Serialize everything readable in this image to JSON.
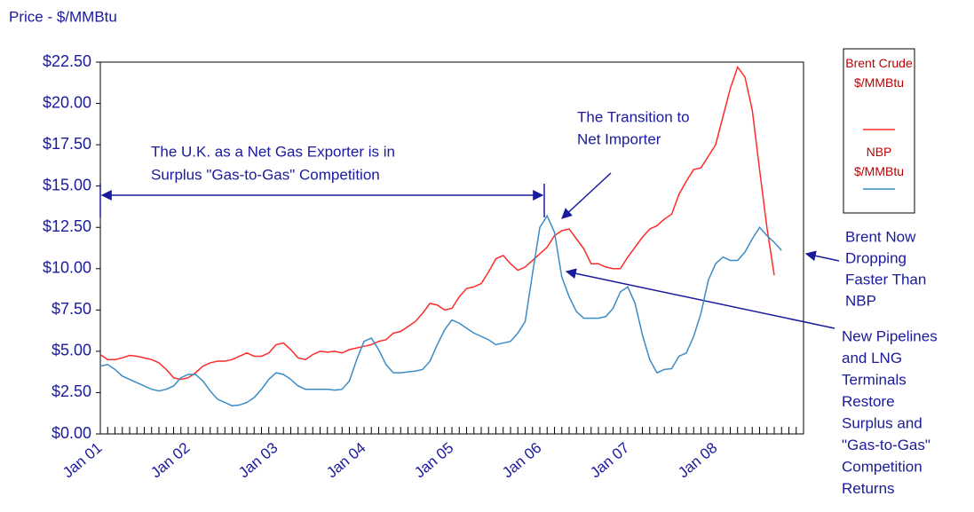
{
  "chart_data": {
    "type": "line",
    "title": "Price - $/MMBtu",
    "categories": [
      "Jan 01",
      null,
      null,
      null,
      null,
      null,
      null,
      null,
      null,
      null,
      null,
      null,
      "Jan 02",
      null,
      null,
      null,
      null,
      null,
      null,
      null,
      null,
      null,
      null,
      null,
      "Jan 03",
      null,
      null,
      null,
      null,
      null,
      null,
      null,
      null,
      null,
      null,
      null,
      "Jan 04",
      null,
      null,
      null,
      null,
      null,
      null,
      null,
      null,
      null,
      null,
      null,
      "Jan 05",
      null,
      null,
      null,
      null,
      null,
      null,
      null,
      null,
      null,
      null,
      null,
      "Jan 06",
      null,
      null,
      null,
      null,
      null,
      null,
      null,
      null,
      null,
      null,
      null,
      "Jan 07",
      null,
      null,
      null,
      null,
      null,
      null,
      null,
      null,
      null,
      null,
      null,
      "Jan 08",
      null,
      null,
      null,
      null,
      null,
      null,
      null,
      null,
      null,
      null,
      null
    ],
    "series": [
      {
        "name": "Brent Crude $/MMBtu",
        "color": "#ff2a2a",
        "values": [
          4.8,
          4.5,
          4.5,
          4.6,
          4.75,
          4.7,
          4.6,
          4.5,
          4.3,
          3.9,
          3.4,
          3.3,
          3.4,
          3.7,
          4.1,
          4.3,
          4.4,
          4.4,
          4.5,
          4.7,
          4.9,
          4.7,
          4.7,
          4.9,
          5.4,
          5.5,
          5.1,
          4.6,
          4.5,
          4.8,
          5.0,
          4.95,
          5.0,
          4.9,
          5.1,
          5.2,
          5.3,
          5.4,
          5.6,
          5.7,
          6.1,
          6.2,
          6.5,
          6.8,
          7.3,
          7.9,
          7.8,
          7.5,
          7.6,
          8.3,
          8.8,
          8.9,
          9.1,
          9.8,
          10.6,
          10.8,
          10.3,
          9.9,
          10.1,
          10.5,
          10.9,
          11.3,
          12.0,
          12.3,
          12.4,
          11.8,
          11.2,
          10.3,
          10.3,
          10.1,
          10.0,
          10.0,
          10.7,
          11.3,
          11.9,
          12.4,
          12.6,
          13.0,
          13.3,
          14.5,
          15.3,
          16.0,
          16.1,
          16.8,
          17.5,
          19.2,
          20.9,
          22.2,
          21.6,
          19.6,
          16.0,
          12.5,
          9.6,
          null,
          null,
          null
        ]
      },
      {
        "name": "NBP $/MMBtu",
        "color": "#3a8cc6",
        "values": [
          4.1,
          4.2,
          3.9,
          3.5,
          3.3,
          3.1,
          2.9,
          2.7,
          2.6,
          2.7,
          2.9,
          3.4,
          3.6,
          3.6,
          3.2,
          2.6,
          2.1,
          1.9,
          1.7,
          1.75,
          1.9,
          2.2,
          2.7,
          3.3,
          3.7,
          3.6,
          3.3,
          2.9,
          2.7,
          2.7,
          2.7,
          2.7,
          2.65,
          2.7,
          3.2,
          4.5,
          5.6,
          5.8,
          5.1,
          4.2,
          3.7,
          3.7,
          3.75,
          3.8,
          3.9,
          4.4,
          5.4,
          6.3,
          6.9,
          6.7,
          6.4,
          6.1,
          5.9,
          5.7,
          5.4,
          5.5,
          5.6,
          6.1,
          6.8,
          9.7,
          12.5,
          13.2,
          12.2,
          9.5,
          8.3,
          7.4,
          7.0,
          7.0,
          7.0,
          7.1,
          7.6,
          8.6,
          8.9,
          7.9,
          6.0,
          4.5,
          3.7,
          3.9,
          3.95,
          4.7,
          4.9,
          5.9,
          7.3,
          9.3,
          10.3,
          10.7,
          10.5,
          10.5,
          11.0,
          11.8,
          12.5,
          12.0,
          11.6,
          11.1,
          null,
          null
        ]
      }
    ],
    "ylim": [
      0,
      22.5
    ],
    "yticks": [
      {
        "value": 0,
        "label": "$0.00"
      },
      {
        "value": 2.5,
        "label": "$2.50"
      },
      {
        "value": 5,
        "label": "$5.00"
      },
      {
        "value": 7.5,
        "label": "$7.50"
      },
      {
        "value": 10,
        "label": "$10.00"
      },
      {
        "value": 12.5,
        "label": "$12.50"
      },
      {
        "value": 15,
        "label": "$15.00"
      },
      {
        "value": 17.5,
        "label": "$17.50"
      },
      {
        "value": 20,
        "label": "$20.00"
      },
      {
        "value": 22.5,
        "label": "$22.50"
      }
    ],
    "annotations": [
      [
        "The  U.K. as a Net Gas Exporter is in",
        "Surplus \"Gas-to-Gas\" Competition"
      ],
      [
        "The Transition to",
        "Net Importer"
      ],
      [
        "Brent Now",
        "Dropping",
        "Faster Than",
        "NBP"
      ],
      [
        "New Pipelines",
        "and LNG",
        "Terminals",
        "Restore",
        "Surplus and",
        "\"Gas-to-Gas\"",
        "Competition",
        "Returns"
      ]
    ]
  }
}
